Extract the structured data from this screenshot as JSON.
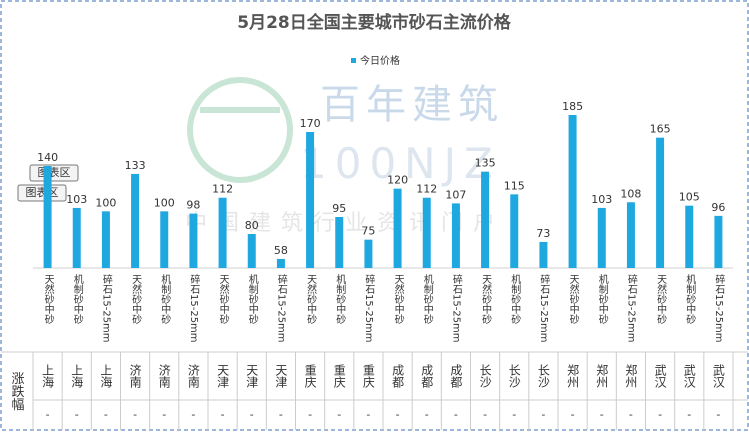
{
  "chart_data": {
    "type": "bar",
    "title": "5月28日全国主要城市砂石主流价格",
    "categories": [
      "天然砂中砂",
      "机制砂中砂",
      "碎石15-25mm",
      "天然砂中砂",
      "机制砂中砂",
      "碎石15-25mm",
      "天然砂中砂",
      "机制砂中砂",
      "碎石15-25mm",
      "天然砂中砂",
      "机制砂中砂",
      "碎石15-25mm",
      "天然砂中砂",
      "机制砂中砂",
      "碎石15-25mm",
      "天然砂中砂",
      "机制砂中砂",
      "碎石15-25mm",
      "天然砂中砂",
      "机制砂中砂",
      "碎石15-25mm",
      "天然砂中砂",
      "机制砂中砂",
      "碎石15-25mm"
    ],
    "series": [
      {
        "name": "今日价格",
        "color": "#1fa8e0",
        "values": [
          140,
          103,
          100,
          133,
          100,
          98,
          112,
          80,
          58,
          170,
          95,
          75,
          120,
          112,
          107,
          135,
          115,
          73,
          185,
          103,
          108,
          165,
          105,
          96
        ]
      }
    ],
    "ylim": [
      50,
      200
    ]
  },
  "table": {
    "row_header": "涨跌幅",
    "cities": [
      "上海",
      "上海",
      "上海",
      "济南",
      "济南",
      "济南",
      "天津",
      "天津",
      "天津",
      "重庆",
      "重庆",
      "重庆",
      "成都",
      "成都",
      "成都",
      "长沙",
      "长沙",
      "长沙",
      "郑州",
      "郑州",
      "郑州",
      "武汉",
      "武汉",
      "武汉"
    ],
    "changes": [
      "-",
      "-",
      "-",
      "-",
      "-",
      "-",
      "-",
      "-",
      "-",
      "-",
      "-",
      "-",
      "-",
      "-",
      "-",
      "-",
      "-",
      "-",
      "-",
      "-",
      "-",
      "-",
      "-",
      "-"
    ]
  },
  "watermark": {
    "logo": "百年建筑",
    "code": "100NJZ",
    "slogan": "中国建筑行业资讯门户"
  },
  "tooltips": [
    "图表区",
    "图表区"
  ]
}
